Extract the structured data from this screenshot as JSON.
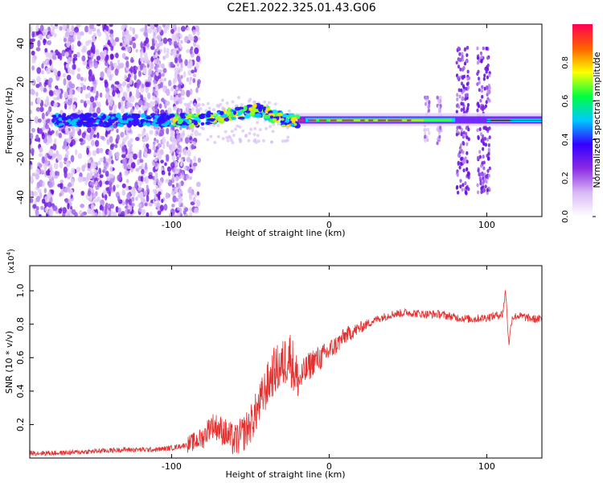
{
  "title": "C2E1.2022.325.01.43.G06",
  "colors": {
    "axis": "#000000",
    "snr_line": "#e53030",
    "spectral_low": "#cfa8f5",
    "spectral_mid": "#6a11e0"
  },
  "chart_data": [
    {
      "type": "heatmap",
      "title": "C2E1.2022.325.01.43.G06",
      "xlabel": "Height of straight line (km)",
      "ylabel": "Frequency (Hz)",
      "xlim": [
        -190,
        135
      ],
      "ylim": [
        -50,
        50
      ],
      "x_ticks": [
        -100,
        0,
        100
      ],
      "y_ticks": [
        -40,
        -20,
        0,
        20,
        40
      ],
      "colorbar": {
        "label": "Normalized spectral amplitude",
        "range": [
          0,
          1
        ],
        "ticks": [
          "0.0",
          "0.2",
          "0.4",
          "0.6",
          "0.8"
        ],
        "colormap": [
          "#ffffff",
          "#d9b8f5",
          "#8a2be2",
          "#3300ff",
          "#00c8ff",
          "#00ff40",
          "#ffff00",
          "#ff6000",
          "#ff0050"
        ]
      },
      "features": {
        "carrier_frequency_hz": 0,
        "noise_dominated_below_km": -90,
        "bursts_km": [
          -110,
          -95,
          62,
          70,
          85,
          98
        ]
      }
    },
    {
      "type": "line",
      "xlabel": "Height of straight line (km)",
      "ylabel": "SNR (10 * v/v)",
      "y_scale_label": "(x10",
      "y_scale_exp": "4",
      "y_scale_close": ")",
      "xlim": [
        -190,
        135
      ],
      "ylim": [
        0,
        1.15
      ],
      "x_ticks": [
        -100,
        0,
        100
      ],
      "y_ticks": [
        "0.2",
        "0.4",
        "0.6",
        "0.8",
        "1.0"
      ],
      "series": [
        {
          "x": [
            -190,
            -170,
            -150,
            -130,
            -110,
            -100,
            -90,
            -80,
            -75,
            -70,
            -65,
            -60,
            -55,
            -50,
            -45,
            -40,
            -35,
            -30,
            -25,
            -20,
            -15,
            -10,
            -5,
            0,
            5,
            10,
            20,
            30,
            40,
            50,
            60,
            70,
            80,
            90,
            100,
            110,
            112,
            114,
            116,
            120,
            125,
            130,
            135
          ],
          "y": [
            0.03,
            0.03,
            0.04,
            0.05,
            0.05,
            0.06,
            0.08,
            0.12,
            0.2,
            0.18,
            0.14,
            0.1,
            0.14,
            0.2,
            0.3,
            0.42,
            0.52,
            0.55,
            0.62,
            0.45,
            0.52,
            0.58,
            0.6,
            0.64,
            0.68,
            0.73,
            0.78,
            0.83,
            0.86,
            0.87,
            0.86,
            0.86,
            0.84,
            0.83,
            0.84,
            0.86,
            1.0,
            0.68,
            0.84,
            0.85,
            0.84,
            0.83,
            0.83
          ]
        }
      ]
    }
  ]
}
